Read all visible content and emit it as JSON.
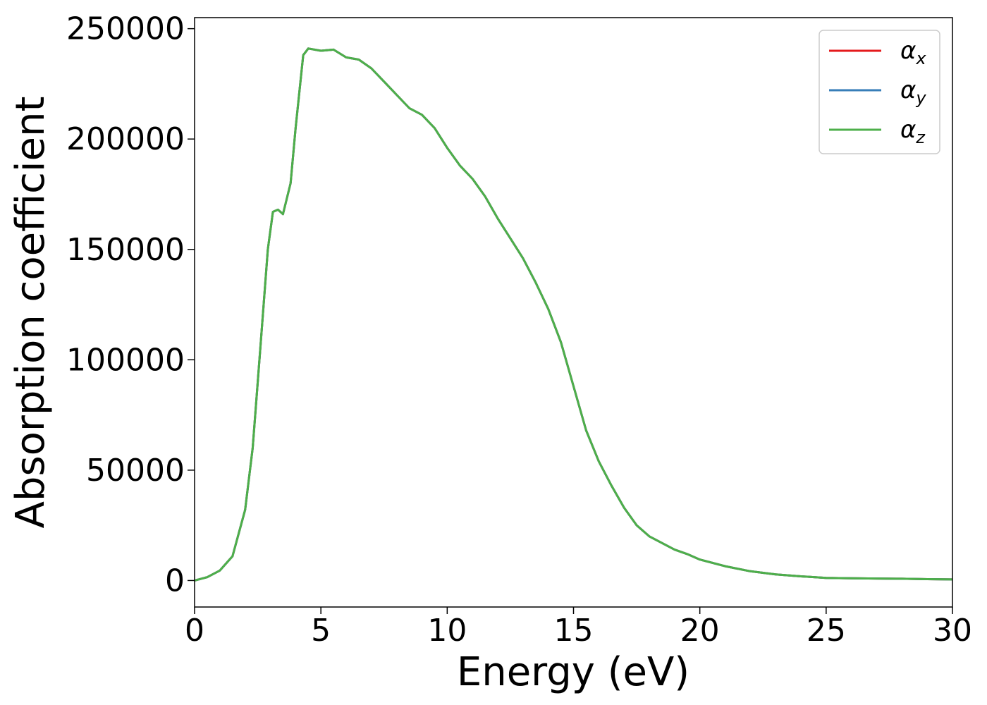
{
  "chart_data": {
    "type": "line",
    "title": "",
    "xlabel": "Energy (eV)",
    "ylabel": "Absorption coefficient",
    "xlim": [
      0,
      30
    ],
    "ylim": [
      -12000,
      255000
    ],
    "xticks": [
      0,
      5,
      10,
      15,
      20,
      25,
      30
    ],
    "xtick_labels": [
      "0",
      "5",
      "10",
      "15",
      "20",
      "25",
      "30"
    ],
    "yticks": [
      0,
      50000,
      100000,
      150000,
      200000,
      250000
    ],
    "ytick_labels": [
      "0",
      "50000",
      "100000",
      "150000",
      "200000",
      "250000"
    ],
    "grid": false,
    "legend_position": "top-right",
    "x": [
      0,
      0.5,
      1.0,
      1.5,
      2.0,
      2.3,
      2.6,
      2.9,
      3.1,
      3.3,
      3.5,
      3.8,
      4.0,
      4.3,
      4.5,
      5.0,
      5.5,
      6.0,
      6.5,
      7.0,
      7.5,
      8.0,
      8.5,
      9.0,
      9.5,
      10.0,
      10.5,
      11.0,
      11.5,
      12.0,
      12.5,
      13.0,
      13.5,
      14.0,
      14.5,
      15.0,
      15.5,
      16.0,
      16.5,
      17.0,
      17.5,
      18.0,
      18.5,
      19.0,
      19.5,
      20.0,
      21.0,
      22.0,
      23.0,
      24.0,
      25.0,
      26.0,
      27.0,
      28.0,
      29.0,
      30.0
    ],
    "series": [
      {
        "name": "αx",
        "color": "#e41a1c",
        "values": [
          0,
          1500,
          4500,
          11000,
          32000,
          60000,
          105000,
          150000,
          167000,
          168000,
          166000,
          180000,
          205000,
          238000,
          241000,
          240000,
          240500,
          237000,
          236000,
          232000,
          226000,
          220000,
          214000,
          211000,
          205000,
          196000,
          188000,
          182000,
          174000,
          164000,
          155000,
          146000,
          135000,
          123000,
          108000,
          88000,
          68000,
          54000,
          43000,
          33000,
          25000,
          20000,
          17000,
          14000,
          12000,
          9500,
          6500,
          4200,
          2800,
          1900,
          1200,
          1000,
          900,
          800,
          600,
          500
        ]
      },
      {
        "name": "αy",
        "color": "#377eb8",
        "values": [
          0,
          1500,
          4500,
          11000,
          32000,
          60000,
          105000,
          150000,
          167000,
          168000,
          166000,
          180000,
          205000,
          238000,
          241000,
          240000,
          240500,
          237000,
          236000,
          232000,
          226000,
          220000,
          214000,
          211000,
          205000,
          196000,
          188000,
          182000,
          174000,
          164000,
          155000,
          146000,
          135000,
          123000,
          108000,
          88000,
          68000,
          54000,
          43000,
          33000,
          25000,
          20000,
          17000,
          14000,
          12000,
          9500,
          6500,
          4200,
          2800,
          1900,
          1200,
          1000,
          900,
          800,
          600,
          500
        ]
      },
      {
        "name": "αz",
        "color": "#4daf4a",
        "values": [
          0,
          1500,
          4500,
          11000,
          32000,
          60000,
          105000,
          150000,
          167000,
          168000,
          166000,
          180000,
          205000,
          238000,
          241000,
          240000,
          240500,
          237000,
          236000,
          232000,
          226000,
          220000,
          214000,
          211000,
          205000,
          196000,
          188000,
          182000,
          174000,
          164000,
          155000,
          146000,
          135000,
          123000,
          108000,
          88000,
          68000,
          54000,
          43000,
          33000,
          25000,
          20000,
          17000,
          14000,
          12000,
          9500,
          6500,
          4200,
          2800,
          1900,
          1200,
          1000,
          900,
          800,
          600,
          500
        ]
      }
    ],
    "legend": [
      {
        "symbol": "α",
        "subscript": "x",
        "color": "#e41a1c"
      },
      {
        "symbol": "α",
        "subscript": "y",
        "color": "#377eb8"
      },
      {
        "symbol": "α",
        "subscript": "z",
        "color": "#4daf4a"
      }
    ]
  }
}
